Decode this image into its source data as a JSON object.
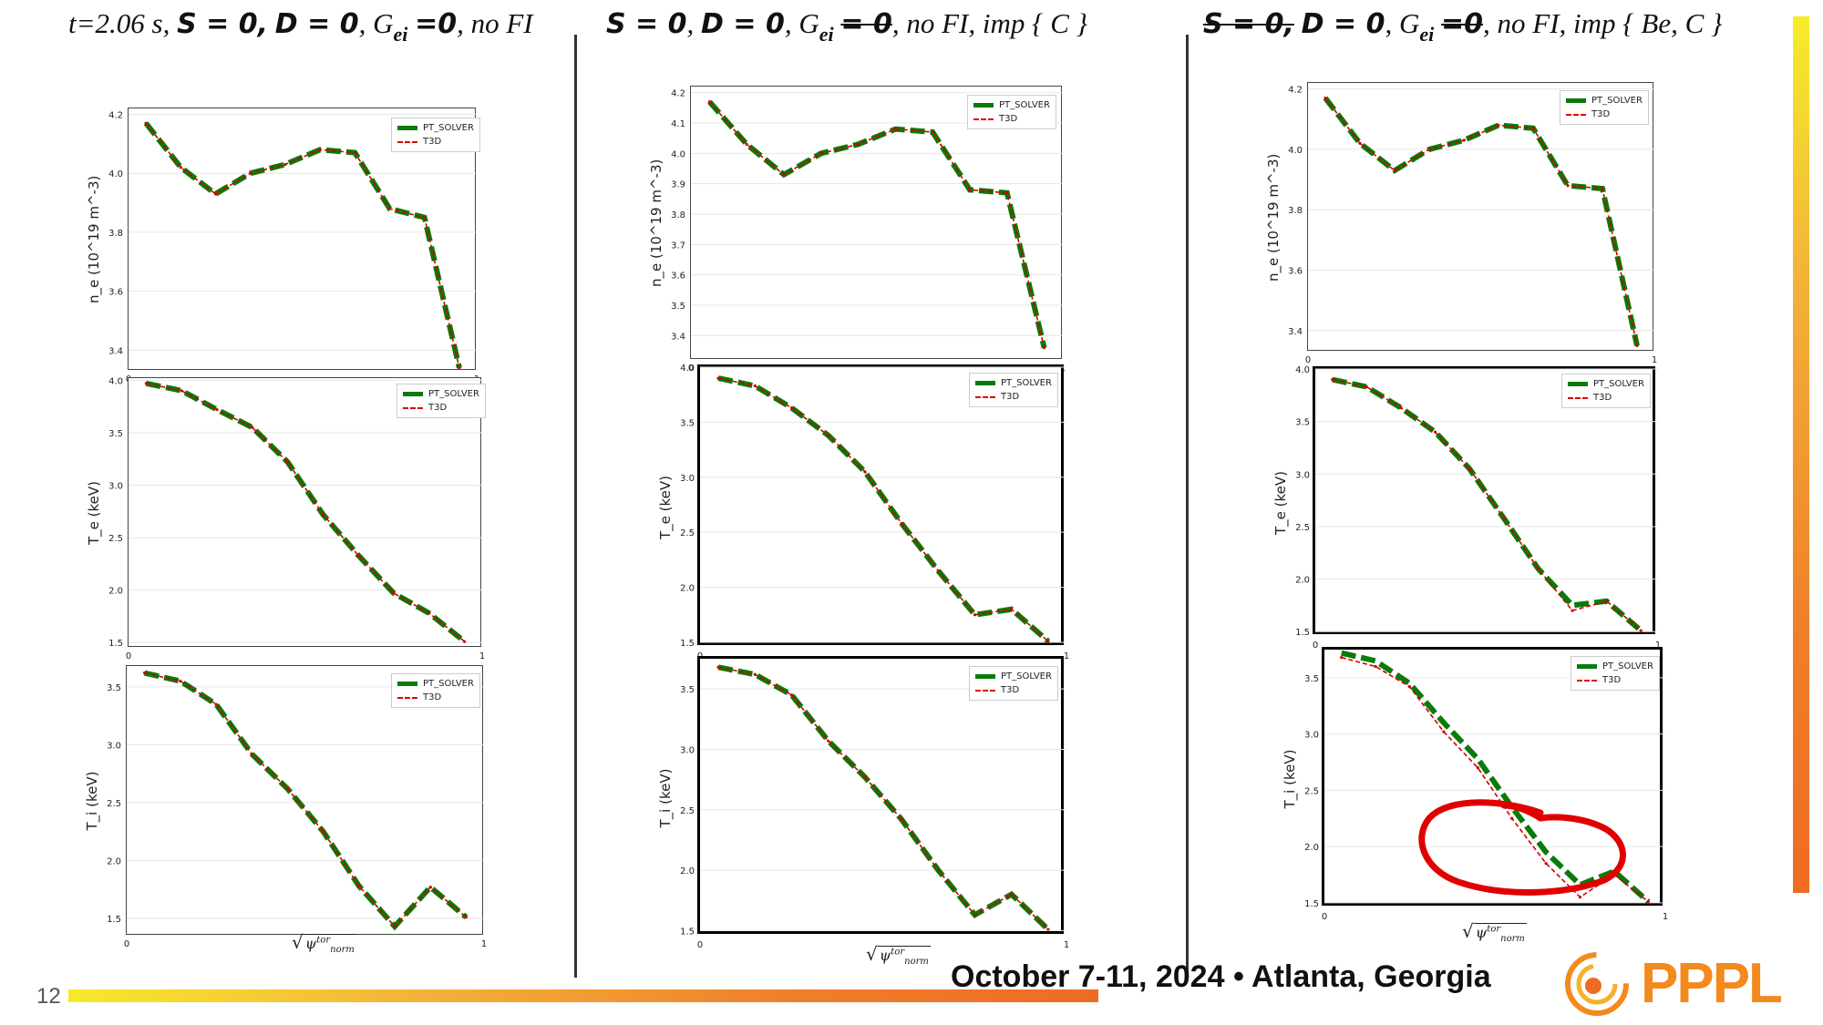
{
  "headers": {
    "h1": {
      "time": "t=2.06 s,",
      "s": "S = 0,",
      "d": "D = 0",
      "sep": ",",
      "g": "G",
      "gsub": "ei",
      "geq": "=0",
      "rest": ", no FI"
    },
    "h2": {
      "s": "S  = 0",
      "sep1": ",",
      "d": "D = 0",
      "sep2": ",",
      "g": "G",
      "gsub": "ei",
      "ne": "= 0",
      "rest": ", no FI,  imp { C }"
    },
    "h3": {
      "s": "S = 0,",
      "d": "D = 0",
      "sep": ",",
      "g": "G",
      "gsub": "ei",
      "ne": "=0",
      "rest": ", no FI,  imp { Be, C }"
    }
  },
  "legend": {
    "series1": "PT_SOLVER",
    "series2": "T3D"
  },
  "xlabel": {
    "sym": "ψ",
    "sup": "tor",
    "sub": "norm"
  },
  "ylabels": {
    "ne": "n_e (10^19 m^-3)",
    "te": "T_e (keV)",
    "ti": "T_i (keV)"
  },
  "footer": {
    "page": "12",
    "date": "October 7-11, 2024 • Atlanta, Georgia",
    "logo": "PPPL"
  },
  "colors": {
    "pt_solver": "#0a7a0a",
    "t3d": "#d00000",
    "annotation": "#e00000",
    "accent": "#ef7f2a"
  },
  "chart_data": [
    {
      "id": "c1-ne",
      "type": "line",
      "ylabel": "n_e (10^19 m^-3)",
      "xlim": [
        0,
        1
      ],
      "ylim": [
        3.33,
        4.22
      ],
      "yticks": [
        3.4,
        3.6,
        3.8,
        4.0,
        4.2
      ],
      "xticks": [
        0,
        1
      ],
      "series": [
        {
          "name": "PT_SOLVER",
          "x": [
            0.05,
            0.15,
            0.25,
            0.35,
            0.45,
            0.55,
            0.65,
            0.75,
            0.85,
            0.95
          ],
          "y": [
            4.17,
            4.02,
            3.93,
            4.0,
            4.03,
            4.08,
            4.07,
            3.88,
            3.85,
            3.34
          ]
        },
        {
          "name": "T3D",
          "x": [
            0.05,
            0.15,
            0.25,
            0.35,
            0.45,
            0.55,
            0.65,
            0.75,
            0.85,
            0.95
          ],
          "y": [
            4.17,
            4.02,
            3.93,
            4.0,
            4.03,
            4.08,
            4.07,
            3.88,
            3.85,
            3.34
          ]
        }
      ]
    },
    {
      "id": "c1-te",
      "type": "line",
      "ylabel": "T_e (keV)",
      "xlim": [
        0,
        1
      ],
      "ylim": [
        1.45,
        4.02
      ],
      "yticks": [
        1.5,
        2.0,
        2.5,
        3.0,
        3.5,
        4.0
      ],
      "xticks": [
        0,
        1
      ],
      "series": [
        {
          "name": "PT_SOLVER",
          "x": [
            0.05,
            0.15,
            0.25,
            0.35,
            0.45,
            0.55,
            0.65,
            0.75,
            0.85,
            0.95
          ],
          "y": [
            3.97,
            3.9,
            3.72,
            3.55,
            3.22,
            2.72,
            2.33,
            1.97,
            1.78,
            1.51
          ]
        },
        {
          "name": "T3D",
          "x": [
            0.05,
            0.15,
            0.25,
            0.35,
            0.45,
            0.55,
            0.65,
            0.75,
            0.85,
            0.95
          ],
          "y": [
            3.97,
            3.9,
            3.72,
            3.55,
            3.22,
            2.72,
            2.33,
            1.97,
            1.78,
            1.51
          ]
        }
      ]
    },
    {
      "id": "c1-ti",
      "type": "line",
      "ylabel": "T_i (keV)",
      "xlim": [
        0,
        1
      ],
      "ylim": [
        1.35,
        3.68
      ],
      "yticks": [
        1.5,
        2.0,
        2.5,
        3.0,
        3.5
      ],
      "xticks": [
        0,
        1
      ],
      "series": [
        {
          "name": "PT_SOLVER",
          "x": [
            0.05,
            0.15,
            0.25,
            0.35,
            0.45,
            0.55,
            0.65,
            0.75,
            0.85,
            0.95
          ],
          "y": [
            3.62,
            3.55,
            3.35,
            2.92,
            2.62,
            2.25,
            1.78,
            1.43,
            1.77,
            1.51
          ]
        },
        {
          "name": "T3D",
          "x": [
            0.05,
            0.15,
            0.25,
            0.35,
            0.45,
            0.55,
            0.65,
            0.75,
            0.85,
            0.95
          ],
          "y": [
            3.62,
            3.55,
            3.35,
            2.92,
            2.62,
            2.25,
            1.78,
            1.43,
            1.77,
            1.51
          ]
        }
      ]
    },
    {
      "id": "c2-ne",
      "type": "line",
      "ylabel": "n_e (10^19 m^-3)",
      "xlim": [
        0,
        1
      ],
      "ylim": [
        3.32,
        4.22
      ],
      "yticks": [
        3.4,
        3.5,
        3.6,
        3.7,
        3.8,
        3.9,
        4.0,
        4.1,
        4.2
      ],
      "xticks": [
        0,
        1
      ],
      "series": [
        {
          "name": "PT_SOLVER",
          "x": [
            0.05,
            0.15,
            0.25,
            0.35,
            0.45,
            0.55,
            0.65,
            0.75,
            0.85,
            0.95
          ],
          "y": [
            4.17,
            4.03,
            3.93,
            4.0,
            4.03,
            4.08,
            4.07,
            3.88,
            3.87,
            3.36
          ]
        },
        {
          "name": "T3D",
          "x": [
            0.05,
            0.15,
            0.25,
            0.35,
            0.45,
            0.55,
            0.65,
            0.75,
            0.85,
            0.95
          ],
          "y": [
            4.17,
            4.03,
            3.93,
            4.0,
            4.03,
            4.08,
            4.07,
            3.88,
            3.87,
            3.36
          ]
        }
      ]
    },
    {
      "id": "c2-te",
      "type": "line",
      "ylabel": "T_e (keV)",
      "xlim": [
        0,
        1
      ],
      "ylim": [
        1.45,
        4.0
      ],
      "yticks": [
        1.5,
        2.0,
        2.5,
        3.0,
        3.5,
        4.0
      ],
      "xticks": [
        0,
        1
      ],
      "series": [
        {
          "name": "PT_SOLVER",
          "x": [
            0.05,
            0.15,
            0.25,
            0.35,
            0.45,
            0.55,
            0.65,
            0.75,
            0.85,
            0.95
          ],
          "y": [
            3.9,
            3.83,
            3.63,
            3.38,
            3.05,
            2.58,
            2.15,
            1.75,
            1.8,
            1.51
          ]
        },
        {
          "name": "T3D",
          "x": [
            0.05,
            0.15,
            0.25,
            0.35,
            0.45,
            0.55,
            0.65,
            0.75,
            0.85,
            0.95
          ],
          "y": [
            3.9,
            3.83,
            3.63,
            3.38,
            3.05,
            2.58,
            2.15,
            1.75,
            1.8,
            1.51
          ]
        }
      ]
    },
    {
      "id": "c2-ti",
      "type": "line",
      "ylabel": "T_i (keV)",
      "xlim": [
        0,
        1
      ],
      "ylim": [
        1.45,
        3.75
      ],
      "yticks": [
        1.5,
        2.0,
        2.5,
        3.0,
        3.5
      ],
      "xticks": [
        0,
        1
      ],
      "series": [
        {
          "name": "PT_SOLVER",
          "x": [
            0.05,
            0.15,
            0.25,
            0.35,
            0.45,
            0.55,
            0.65,
            0.75,
            0.85,
            0.95
          ],
          "y": [
            3.68,
            3.62,
            3.45,
            3.07,
            2.77,
            2.42,
            2.0,
            1.63,
            1.8,
            1.51
          ]
        },
        {
          "name": "T3D",
          "x": [
            0.05,
            0.15,
            0.25,
            0.35,
            0.45,
            0.55,
            0.65,
            0.75,
            0.85,
            0.95
          ],
          "y": [
            3.68,
            3.62,
            3.45,
            3.07,
            2.77,
            2.42,
            2.0,
            1.63,
            1.8,
            1.51
          ]
        }
      ]
    },
    {
      "id": "c3-ne",
      "type": "line",
      "ylabel": "n_e (10^19 m^-3)",
      "xlim": [
        0,
        1
      ],
      "ylim": [
        3.33,
        4.22
      ],
      "yticks": [
        3.4,
        3.6,
        3.8,
        4.0,
        4.2
      ],
      "xticks": [
        0,
        1
      ],
      "series": [
        {
          "name": "PT_SOLVER",
          "x": [
            0.05,
            0.15,
            0.25,
            0.35,
            0.45,
            0.55,
            0.65,
            0.75,
            0.85,
            0.95
          ],
          "y": [
            4.17,
            4.02,
            3.93,
            4.0,
            4.03,
            4.08,
            4.07,
            3.88,
            3.87,
            3.35
          ]
        },
        {
          "name": "T3D",
          "x": [
            0.05,
            0.15,
            0.25,
            0.35,
            0.45,
            0.55,
            0.65,
            0.75,
            0.85,
            0.95
          ],
          "y": [
            4.17,
            4.02,
            3.93,
            4.0,
            4.03,
            4.08,
            4.07,
            3.88,
            3.87,
            3.35
          ]
        }
      ]
    },
    {
      "id": "c3-te",
      "type": "line",
      "ylabel": "T_e (keV)",
      "xlim": [
        0,
        1
      ],
      "ylim": [
        1.45,
        4.0
      ],
      "yticks": [
        1.5,
        2.0,
        2.5,
        3.0,
        3.5,
        4.0
      ],
      "xticks": [
        0,
        1
      ],
      "series": [
        {
          "name": "PT_SOLVER",
          "x": [
            0.05,
            0.15,
            0.25,
            0.35,
            0.45,
            0.55,
            0.65,
            0.75,
            0.85,
            0.95
          ],
          "y": [
            3.9,
            3.83,
            3.63,
            3.4,
            3.05,
            2.58,
            2.1,
            1.75,
            1.79,
            1.51
          ]
        },
        {
          "name": "T3D",
          "x": [
            0.05,
            0.15,
            0.25,
            0.35,
            0.45,
            0.55,
            0.65,
            0.75,
            0.85,
            0.95
          ],
          "y": [
            3.9,
            3.83,
            3.63,
            3.4,
            3.05,
            2.58,
            2.1,
            1.7,
            1.79,
            1.51
          ]
        }
      ]
    },
    {
      "id": "c3-ti",
      "type": "line",
      "ylabel": "T_i (keV)",
      "xlim": [
        0,
        1
      ],
      "ylim": [
        1.45,
        3.75
      ],
      "yticks": [
        1.5,
        2.0,
        2.5,
        3.0,
        3.5
      ],
      "xticks": [
        0,
        1
      ],
      "series": [
        {
          "name": "PT_SOLVER",
          "x": [
            0.05,
            0.15,
            0.25,
            0.35,
            0.45,
            0.55,
            0.65,
            0.75,
            0.85,
            0.95
          ],
          "y": [
            3.72,
            3.65,
            3.45,
            3.1,
            2.78,
            2.35,
            1.95,
            1.66,
            1.78,
            1.51
          ]
        },
        {
          "name": "T3D",
          "x": [
            0.05,
            0.15,
            0.25,
            0.35,
            0.45,
            0.55,
            0.65,
            0.75,
            0.85,
            0.95
          ],
          "y": [
            3.68,
            3.6,
            3.42,
            3.02,
            2.7,
            2.25,
            1.85,
            1.55,
            1.75,
            1.51
          ]
        }
      ]
    }
  ]
}
